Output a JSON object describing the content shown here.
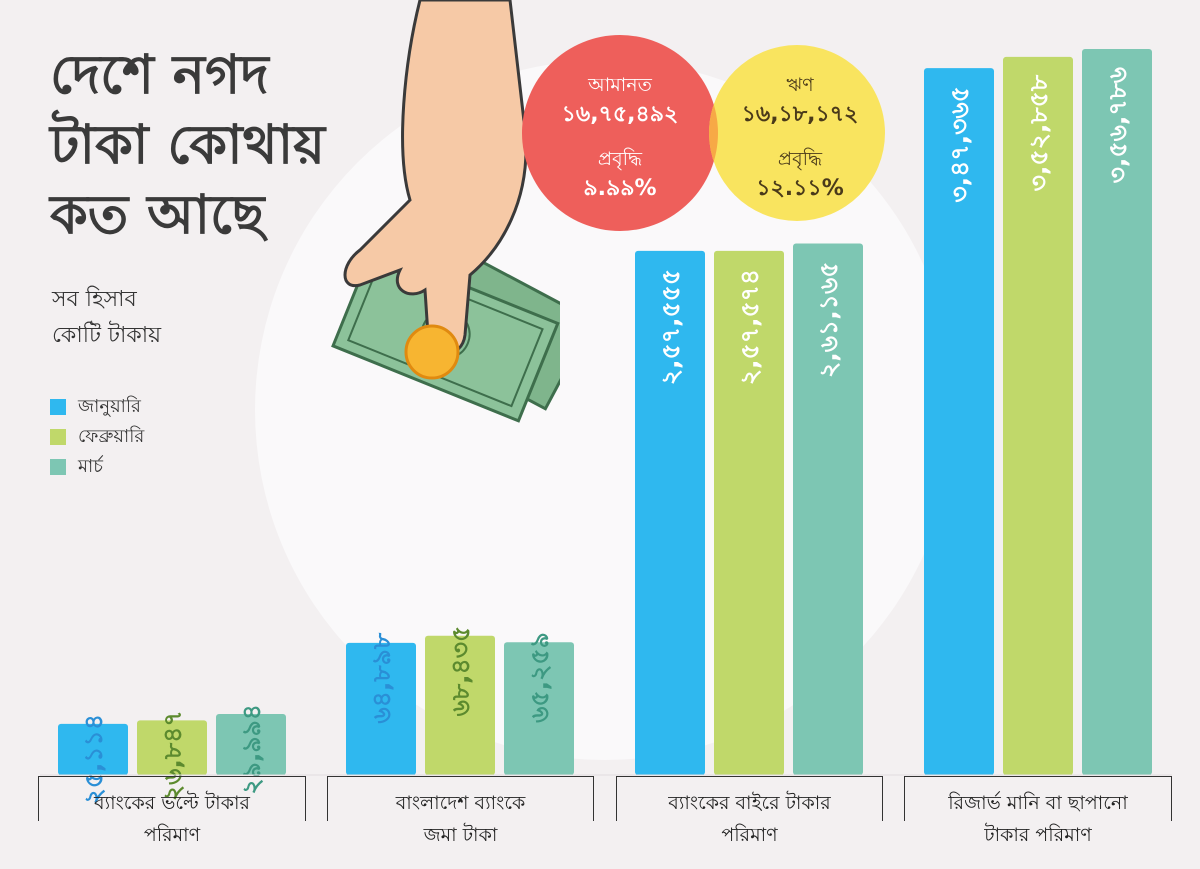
{
  "title": {
    "line1": "দেশে নগদ",
    "line2": "টাকা কোথায়",
    "line3": "কত আছে"
  },
  "unit_note": {
    "line1": "সব হিসাব",
    "line2": "কোটি টাকায়"
  },
  "venn": {
    "left": {
      "label": "আমানত",
      "value": "১৬,৭৫,৪৯২",
      "growth_label": "প্রবৃদ্ধি",
      "growth": "৯.৯৯%",
      "color": "#ee5f5b"
    },
    "right": {
      "label": "ঋণ",
      "value": "১৬,১৮,১৭২",
      "growth_label": "প্রবৃদ্ধি",
      "growth": "১২.১১%",
      "color": "#f9e45f"
    },
    "overlap_color": "#f7a946"
  },
  "chart_data": {
    "type": "bar",
    "categories": [
      [
        "ব্যাংকের ভল্টে টাকার",
        "পরিমাণ"
      ],
      [
        "বাংলাদেশ ব্যাংকে",
        "জমা টাকা"
      ],
      [
        "ব্যাংকের বাইরে টাকার",
        "পরিমাণ"
      ],
      [
        "রিজার্ভ মানি বা ছাপানো",
        "টাকার পরিমাণ"
      ]
    ],
    "series": [
      {
        "name": "জানুয়ারি",
        "color": "#2fb8ef",
        "values": [
          25114,
          64898,
          257555,
          347365
        ],
        "labels": [
          "২৫,১১৪",
          "৬৪,৮৯৮",
          "২,৫৭,৫৫৫",
          "৩,৪৭,৩৬৫"
        ]
      },
      {
        "name": "ফেব্রুয়ারি",
        "color": "#c0d86a",
        "values": [
          26847,
          68435,
          257574,
          352858
        ],
        "labels": [
          "২৬,৮৪৭",
          "৬৮,৪৩৫",
          "২,৫৭,৫৭৪",
          "৩,৫২,৮৫৮"
        ]
      },
      {
        "name": "মার্চ",
        "color": "#7dc6b3",
        "values": [
          29994,
          65259,
          261165,
          356786
        ],
        "labels": [
          "২৯,৯৯৪",
          "৬৫,২৫৯",
          "২,৬১,১৬৫",
          "৩,৫৬,৭৮৬"
        ]
      }
    ]
  }
}
